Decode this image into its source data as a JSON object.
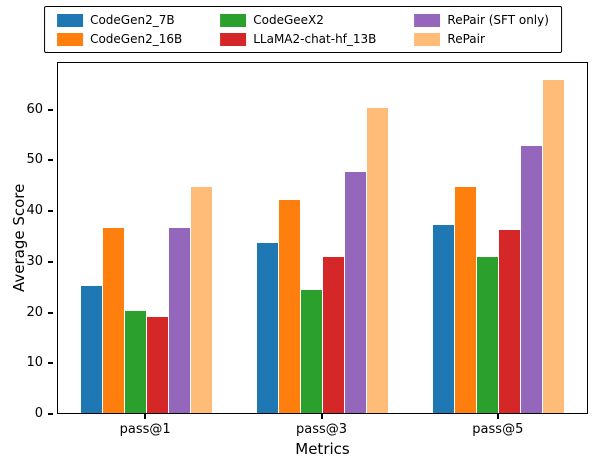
{
  "chart_data": {
    "type": "bar",
    "title": "",
    "xlabel": "Metrics",
    "ylabel": "Average Score",
    "categories": [
      "pass@1",
      "pass@3",
      "pass@5"
    ],
    "series": [
      {
        "name": "CodeGen2_7B",
        "color": "#1f77b4",
        "values": [
          25.0,
          33.5,
          37.0
        ]
      },
      {
        "name": "CodeGen2_16B",
        "color": "#ff7f0e",
        "values": [
          36.5,
          42.0,
          44.5
        ]
      },
      {
        "name": "CodeGeeX2",
        "color": "#2ca02c",
        "values": [
          20.2,
          24.3,
          30.8
        ]
      },
      {
        "name": "LLaMA2-chat-hf_13B",
        "color": "#d62728",
        "values": [
          19.0,
          30.7,
          36.0
        ]
      },
      {
        "name": "RePair (SFT only)",
        "color": "#9467bd",
        "values": [
          36.4,
          47.6,
          52.7
        ]
      },
      {
        "name": "RePair",
        "color": "#ffbb78",
        "values": [
          44.5,
          60.1,
          65.6
        ]
      }
    ],
    "ylim": [
      0,
      69
    ],
    "yticks": [
      0,
      10,
      20,
      30,
      40,
      50,
      60
    ],
    "legend_position": "top",
    "grid": false
  }
}
